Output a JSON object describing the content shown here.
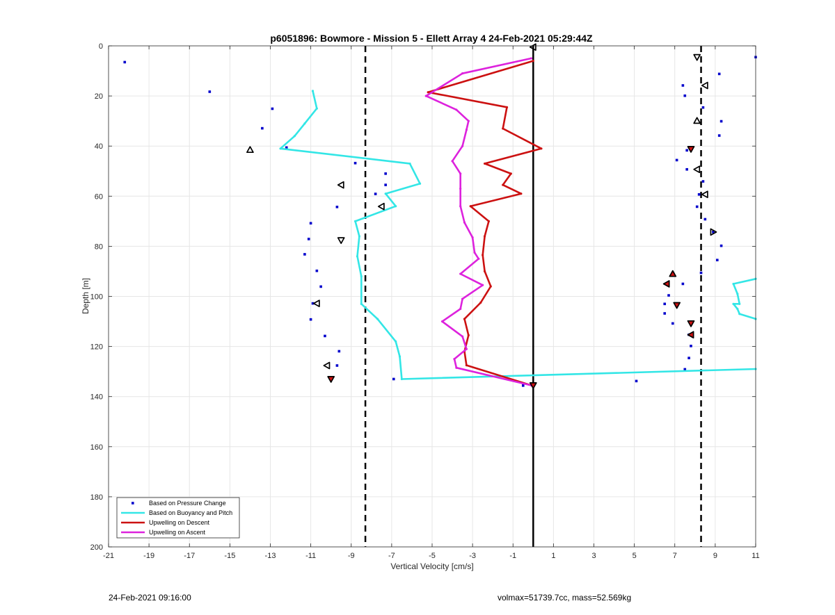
{
  "chart_data": {
    "type": "scatter",
    "title": "p6051896: Bowmore - Mission 5 - Ellett Array 4 24-Feb-2021 05:29:44Z",
    "xlabel": "Vertical Velocity [cm/s]",
    "ylabel": "Depth [m]",
    "xlim": [
      -21,
      11
    ],
    "ylim": [
      0,
      200
    ],
    "y_reversed": true,
    "grid": true,
    "xticks": [
      "-21",
      "-19",
      "-17",
      "-15",
      "-13",
      "-11",
      "-9",
      "-7",
      "-5",
      "-3",
      "-1",
      "1",
      "3",
      "5",
      "7",
      "9",
      "11"
    ],
    "yticks": [
      "0",
      "20",
      "40",
      "60",
      "80",
      "100",
      "120",
      "140",
      "160",
      "180",
      "200"
    ],
    "legend_location": "bottom-left",
    "reference_lines": [
      {
        "x": -8.3,
        "style": "dashed",
        "color": "#000000"
      },
      {
        "x": 0,
        "style": "solid",
        "color": "#000000"
      },
      {
        "x": 8.3,
        "style": "dashed",
        "color": "#000000"
      }
    ],
    "series": [
      {
        "name": "Based on Pressure Change",
        "kind": "dots",
        "color": "#0000cc",
        "points": [
          [
            -20.2,
            6.5
          ],
          [
            -16.0,
            18.3
          ],
          [
            -12.9,
            25.1
          ],
          [
            -13.4,
            32.9
          ],
          [
            -12.2,
            40.6
          ],
          [
            -8.8,
            46.8
          ],
          [
            -7.3,
            51.0
          ],
          [
            -7.3,
            55.5
          ],
          [
            -7.8,
            59.1
          ],
          [
            -9.7,
            64.3
          ],
          [
            -11.0,
            70.8
          ],
          [
            -11.1,
            77.1
          ],
          [
            -11.3,
            83.2
          ],
          [
            -10.7,
            89.8
          ],
          [
            -10.5,
            96.1
          ],
          [
            -10.9,
            102.8
          ],
          [
            -11.0,
            109.2
          ],
          [
            -10.3,
            115.8
          ],
          [
            -9.6,
            121.9
          ],
          [
            -9.7,
            127.6
          ],
          [
            -6.9,
            133.0
          ],
          [
            -0.5,
            135.6
          ],
          [
            11.0,
            4.5
          ],
          [
            9.2,
            11.2
          ],
          [
            7.4,
            15.8
          ],
          [
            7.5,
            19.9
          ],
          [
            8.4,
            24.6
          ],
          [
            9.3,
            30.1
          ],
          [
            9.2,
            35.8
          ],
          [
            7.6,
            41.7
          ],
          [
            7.1,
            45.6
          ],
          [
            7.6,
            49.3
          ],
          [
            8.4,
            54.1
          ],
          [
            8.2,
            59.3
          ],
          [
            8.1,
            64.2
          ],
          [
            8.5,
            69.2
          ],
          [
            8.9,
            74.3
          ],
          [
            9.3,
            79.8
          ],
          [
            9.1,
            85.5
          ],
          [
            8.3,
            90.6
          ],
          [
            7.4,
            95.0
          ],
          [
            6.7,
            99.6
          ],
          [
            6.5,
            103.0
          ],
          [
            6.5,
            106.8
          ],
          [
            6.9,
            110.8
          ],
          [
            7.7,
            115.3
          ],
          [
            7.8,
            119.8
          ],
          [
            7.7,
            124.6
          ],
          [
            7.5,
            129.1
          ],
          [
            5.1,
            133.8
          ]
        ]
      },
      {
        "name": "Based on Buoyancy and Pitch",
        "kind": "line",
        "color": "#33e6e6",
        "points": [
          [
            -10.9,
            18.0
          ],
          [
            -10.7,
            25.0
          ],
          [
            -11.3,
            31.0
          ],
          [
            -11.8,
            36.0
          ],
          [
            -12.5,
            41.0
          ],
          [
            -6.1,
            47.0
          ],
          [
            -5.6,
            55.0
          ],
          [
            -7.3,
            59.0
          ],
          [
            -6.8,
            64.0
          ],
          [
            -8.8,
            70.0
          ],
          [
            -8.6,
            76.0
          ],
          [
            -8.7,
            84.0
          ],
          [
            -8.5,
            92.0
          ],
          [
            -8.5,
            103.0
          ],
          [
            -7.7,
            109.0
          ],
          [
            -6.8,
            118.0
          ],
          [
            -6.6,
            124.0
          ],
          [
            -6.5,
            133.0
          ],
          [
            11.0,
            129.0
          ]
        ]
      },
      {
        "name": "Buoyancy and Pitch (right segment)",
        "kind": "line",
        "color": "#33e6e6",
        "points": [
          [
            11.0,
            93.0
          ],
          [
            9.9,
            95.0
          ],
          [
            10.1,
            99.0
          ],
          [
            10.2,
            103.0
          ],
          [
            9.9,
            103.0
          ],
          [
            10.1,
            105.0
          ],
          [
            10.2,
            107.0
          ],
          [
            11.0,
            109.0
          ]
        ]
      },
      {
        "name": "Upwelling on Descent",
        "kind": "line",
        "color": "#cc1111",
        "points": [
          [
            0.0,
            6.0
          ],
          [
            -5.2,
            18.5
          ],
          [
            -1.3,
            24.5
          ],
          [
            -1.5,
            33.0
          ],
          [
            0.4,
            41.0
          ],
          [
            -2.4,
            47.0
          ],
          [
            -1.1,
            51.0
          ],
          [
            -1.5,
            55.5
          ],
          [
            -0.6,
            59.0
          ],
          [
            -3.1,
            64.0
          ],
          [
            -2.2,
            70.0
          ],
          [
            -2.4,
            76.0
          ],
          [
            -2.5,
            83.5
          ],
          [
            -2.4,
            90.0
          ],
          [
            -2.1,
            96.0
          ],
          [
            -2.6,
            102.5
          ],
          [
            -3.4,
            109.0
          ],
          [
            -3.2,
            115.5
          ],
          [
            -3.4,
            122.0
          ],
          [
            -3.3,
            127.5
          ],
          [
            -0.1,
            135.5
          ]
        ]
      },
      {
        "name": "Upwelling on Ascent",
        "kind": "line",
        "color": "#dd22dd",
        "points": [
          [
            -0.1,
            5.0
          ],
          [
            -3.5,
            11.0
          ],
          [
            -5.3,
            20.0
          ],
          [
            -3.8,
            25.5
          ],
          [
            -3.2,
            30.0
          ],
          [
            -3.3,
            33.5
          ],
          [
            -3.5,
            40.0
          ],
          [
            -4.0,
            46.0
          ],
          [
            -3.6,
            51.0
          ],
          [
            -3.6,
            57.0
          ],
          [
            -3.6,
            64.0
          ],
          [
            -3.4,
            70.5
          ],
          [
            -3.0,
            76.5
          ],
          [
            -2.9,
            82.5
          ],
          [
            -2.7,
            85.0
          ],
          [
            -3.6,
            91.0
          ],
          [
            -2.5,
            95.5
          ],
          [
            -3.5,
            101.0
          ],
          [
            -3.6,
            105.0
          ],
          [
            -4.5,
            110.0
          ],
          [
            -3.5,
            116.0
          ],
          [
            -3.3,
            121.0
          ],
          [
            -3.9,
            125.0
          ],
          [
            -3.8,
            128.5
          ],
          [
            -0.1,
            135.5
          ]
        ]
      }
    ],
    "markers": [
      {
        "kind": "open-tri-left",
        "color": "#000000",
        "x": 0.0,
        "y": 0.5
      },
      {
        "kind": "open-tri-down",
        "color": "#000000",
        "x": 8.1,
        "y": 4.5
      },
      {
        "kind": "open-tri-left",
        "color": "#000000",
        "x": 8.5,
        "y": 15.8
      },
      {
        "kind": "open-tri-up",
        "color": "#000000",
        "x": 8.1,
        "y": 29.9
      },
      {
        "kind": "open-tri-up",
        "color": "#000000",
        "x": -14.0,
        "y": 41.5
      },
      {
        "kind": "open-tri-left",
        "color": "#000000",
        "x": 8.1,
        "y": 49.3
      },
      {
        "kind": "open-tri-left",
        "color": "#000000",
        "x": -9.5,
        "y": 55.5
      },
      {
        "kind": "open-tri-left",
        "color": "#000000",
        "x": 8.5,
        "y": 59.3
      },
      {
        "kind": "open-tri-left",
        "color": "#000000",
        "x": -7.5,
        "y": 64.1
      },
      {
        "kind": "open-tri-right",
        "color": "#000000",
        "x": 8.9,
        "y": 74.3
      },
      {
        "kind": "open-tri-down",
        "color": "#000000",
        "x": -9.5,
        "y": 77.6
      },
      {
        "kind": "open-tri-left",
        "color": "#000000",
        "x": -10.7,
        "y": 102.8
      },
      {
        "kind": "open-tri-left",
        "color": "#000000",
        "x": -10.2,
        "y": 127.6
      },
      {
        "kind": "filled-tri-down",
        "color": "#cc1111",
        "x": 7.8,
        "y": 41.2
      },
      {
        "kind": "filled-tri-up",
        "color": "#cc1111",
        "x": 6.9,
        "y": 91.0
      },
      {
        "kind": "filled-tri-left",
        "color": "#cc1111",
        "x": 6.6,
        "y": 95.0
      },
      {
        "kind": "filled-tri-down",
        "color": "#cc1111",
        "x": 7.1,
        "y": 103.5
      },
      {
        "kind": "filled-tri-down",
        "color": "#cc1111",
        "x": 7.8,
        "y": 110.8
      },
      {
        "kind": "filled-tri-left",
        "color": "#cc1111",
        "x": 7.8,
        "y": 115.3
      },
      {
        "kind": "filled-tri-down",
        "color": "#cc1111",
        "x": -10.0,
        "y": 133.0
      },
      {
        "kind": "filled-tri-down",
        "color": "#cc1111",
        "x": 0.0,
        "y": 135.5
      }
    ]
  },
  "footer": {
    "timestamp": "24-Feb-2021 09:16:00",
    "info": "volmax=51739.7cc, mass=52.569kg"
  }
}
